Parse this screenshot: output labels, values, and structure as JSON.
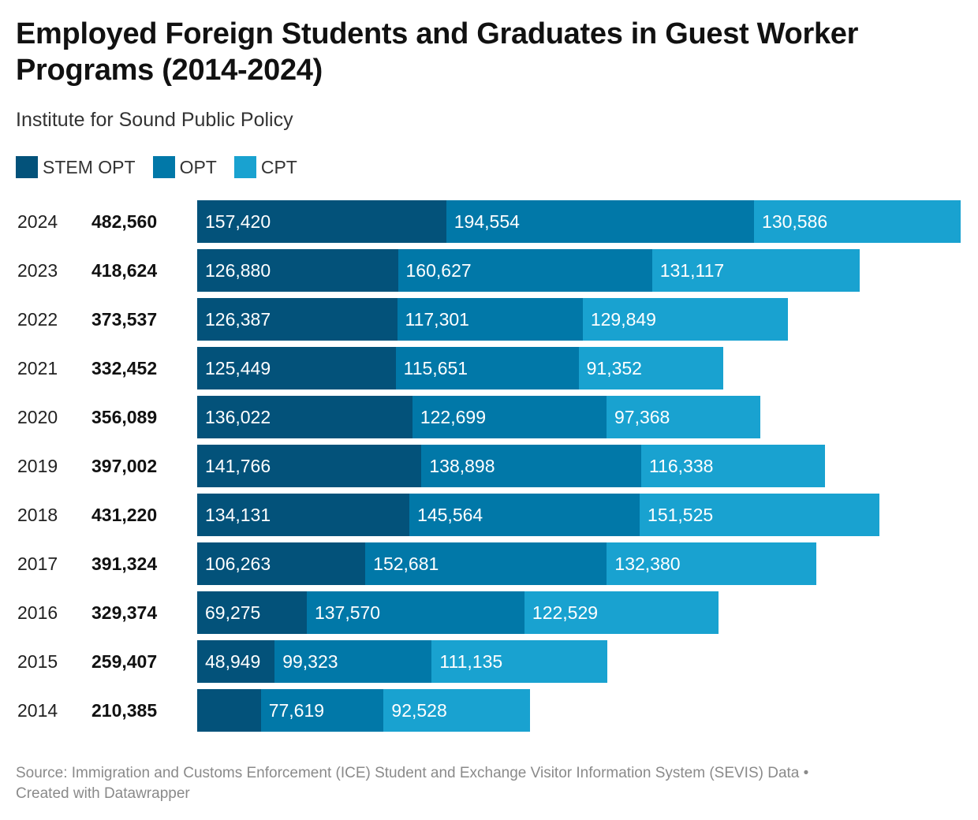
{
  "title": "Employed Foreign Students and Graduates in Guest Worker Programs (2014-2024)",
  "subtitle": "Institute for Sound Public Policy",
  "footer": {
    "line1": "Source: Immigration and Customs Enforcement (ICE) Student and Exchange Visitor Information System (SEVIS) Data •",
    "line2": "Created with Datawrapper"
  },
  "colors": {
    "stem_opt": "#03527a",
    "opt": "#0178a8",
    "cpt": "#19a2d0"
  },
  "chart_data": {
    "type": "bar",
    "orientation": "horizontal",
    "stacked": true,
    "title": "Employed Foreign Students and Graduates in Guest Worker Programs (2014-2024)",
    "subtitle": "Institute for Sound Public Policy",
    "legend_placement": "top-left",
    "grid": false,
    "xlim": [
      0,
      482560
    ],
    "categories": [
      "2024",
      "2023",
      "2022",
      "2021",
      "2020",
      "2019",
      "2018",
      "2017",
      "2016",
      "2015",
      "2014"
    ],
    "totals": [
      "482,560",
      "418,624",
      "373,537",
      "332,452",
      "356,089",
      "397,002",
      "431,220",
      "391,324",
      "329,374",
      "259,407",
      "210,385"
    ],
    "series": [
      {
        "name": "STEM OPT",
        "color": "#03527a",
        "values": [
          157420,
          126880,
          126387,
          125449,
          136022,
          141766,
          134131,
          106263,
          69275,
          48949,
          40238
        ],
        "labels": [
          "157,420",
          "126,880",
          "126,387",
          "125,449",
          "136,022",
          "141,766",
          "134,131",
          "106,263",
          "69,275",
          "48,949",
          ""
        ]
      },
      {
        "name": "OPT",
        "color": "#0178a8",
        "values": [
          194554,
          160627,
          117301,
          115651,
          122699,
          138898,
          145564,
          152681,
          137570,
          99323,
          77619
        ],
        "labels": [
          "194,554",
          "160,627",
          "117,301",
          "115,651",
          "122,699",
          "138,898",
          "145,564",
          "152,681",
          "137,570",
          "99,323",
          "77,619"
        ]
      },
      {
        "name": "CPT",
        "color": "#19a2d0",
        "values": [
          130586,
          131117,
          129849,
          91352,
          97368,
          116338,
          151525,
          132380,
          122529,
          111135,
          92528
        ],
        "labels": [
          "130,586",
          "131,117",
          "129,849",
          "91,352",
          "97,368",
          "116,338",
          "151,525",
          "132,380",
          "122,529",
          "111,135",
          "92,528"
        ]
      }
    ]
  }
}
